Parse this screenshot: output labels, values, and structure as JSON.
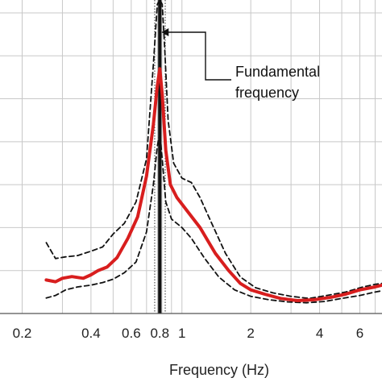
{
  "chart_data": {
    "type": "line",
    "xlabel": "Frequency (Hz)",
    "ylabel": "",
    "x_scale": "log",
    "xlim": [
      0.16,
      7.5
    ],
    "ylim": [
      0,
      7.3
    ],
    "x_ticks": [
      0.2,
      0.4,
      0.6,
      0.8,
      1,
      2,
      4,
      6
    ],
    "x_tick_labels": [
      "0.2",
      "0.4",
      "0.6",
      "0.8",
      "1",
      "2",
      "4",
      "6"
    ],
    "y_gridlines": [
      1,
      2,
      3,
      4,
      5,
      6,
      7
    ],
    "grid": true,
    "annotation": {
      "text_line1": "Fundamental",
      "text_line2": "frequency",
      "target_x": 0.8
    },
    "fundamental_band": {
      "center": 0.8,
      "band_low": 0.78,
      "band_high": 0.82,
      "dotted_low": 0.76,
      "dotted_high": 0.845
    },
    "series": [
      {
        "role": "mean",
        "color": "#d81e1e",
        "style": "solid",
        "x": [
          0.255,
          0.28,
          0.3,
          0.33,
          0.37,
          0.4,
          0.43,
          0.47,
          0.52,
          0.58,
          0.64,
          0.7,
          0.75,
          0.78,
          0.8,
          0.82,
          0.85,
          0.89,
          0.95,
          1.05,
          1.2,
          1.4,
          1.6,
          1.8,
          2.0,
          2.3,
          2.7,
          3.2,
          3.8,
          4.5,
          5.2,
          6.0,
          7.0,
          7.5
        ],
        "y": [
          0.78,
          0.74,
          0.82,
          0.86,
          0.82,
          0.9,
          1.0,
          1.08,
          1.3,
          1.75,
          2.25,
          3.2,
          4.4,
          5.3,
          5.7,
          5.1,
          3.8,
          3.0,
          2.7,
          2.4,
          2.0,
          1.4,
          1.0,
          0.7,
          0.55,
          0.45,
          0.35,
          0.3,
          0.32,
          0.38,
          0.45,
          0.55,
          0.62,
          0.66
        ]
      },
      {
        "role": "upper-bound",
        "color": "#111111",
        "style": "dashed",
        "x": [
          0.255,
          0.28,
          0.31,
          0.35,
          0.4,
          0.45,
          0.5,
          0.56,
          0.63,
          0.7,
          0.75,
          0.78,
          0.8,
          0.82,
          0.84,
          0.87,
          0.92,
          1.0,
          1.1,
          1.2,
          1.35,
          1.55,
          1.8,
          2.1,
          2.5,
          3.0,
          3.6,
          4.3,
          5.2,
          6.2,
          7.0,
          7.5
        ],
        "y": [
          1.65,
          1.28,
          1.32,
          1.35,
          1.45,
          1.55,
          1.85,
          2.1,
          2.6,
          3.6,
          5.8,
          7.2,
          7.3,
          7.2,
          6.2,
          4.5,
          3.5,
          3.15,
          3.05,
          2.7,
          2.1,
          1.4,
          0.85,
          0.6,
          0.48,
          0.4,
          0.35,
          0.42,
          0.5,
          0.62,
          0.68,
          0.7
        ]
      },
      {
        "role": "lower-bound",
        "color": "#111111",
        "style": "dashed",
        "x": [
          0.255,
          0.28,
          0.31,
          0.35,
          0.4,
          0.45,
          0.5,
          0.56,
          0.63,
          0.7,
          0.75,
          0.78,
          0.8,
          0.82,
          0.85,
          0.9,
          1.0,
          1.1,
          1.25,
          1.45,
          1.7,
          2.0,
          2.4,
          2.9,
          3.5,
          4.2,
          5.0,
          6.0,
          7.0,
          7.5
        ],
        "y": [
          0.36,
          0.42,
          0.55,
          0.62,
          0.66,
          0.72,
          0.8,
          0.95,
          1.2,
          1.9,
          3.0,
          3.9,
          4.2,
          3.6,
          2.6,
          2.2,
          2.0,
          1.75,
          1.3,
          0.85,
          0.55,
          0.4,
          0.32,
          0.27,
          0.25,
          0.28,
          0.35,
          0.42,
          0.5,
          0.53
        ]
      }
    ]
  }
}
